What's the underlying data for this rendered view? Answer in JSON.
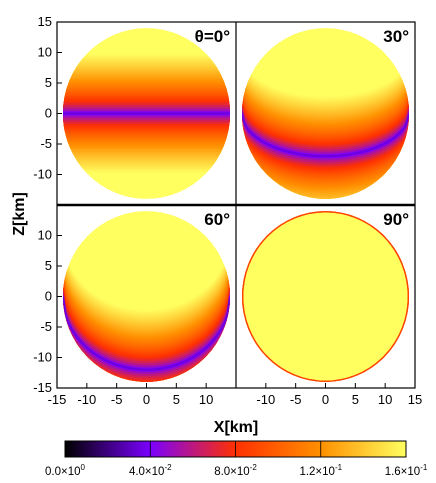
{
  "chart_data": {
    "type": "heatmap",
    "colormap": [
      "#000000",
      "#7a00ff",
      "#ff3000",
      "#ff9000",
      "#ffff60"
    ],
    "xlabel": "X[km]",
    "ylabel": "Z[km]",
    "xlim": [
      -15,
      15
    ],
    "ylim": [
      -15,
      15
    ],
    "grid": false,
    "x_ticks": {
      "left": [
        "-15",
        "-10",
        "-5",
        "0",
        "5",
        "10"
      ],
      "right": [
        "-10",
        "-5",
        "0",
        "5",
        "10",
        "15"
      ]
    },
    "y_ticks": {
      "top": [
        "15",
        "10",
        "5",
        "0",
        "-5",
        "-10"
      ],
      "bottom": [
        "10",
        "5",
        "0",
        "-5",
        "-10",
        "-15"
      ]
    },
    "panels": [
      {
        "label": "θ=0°",
        "angle_deg": 0,
        "band_center_z_km": 0,
        "position": "top-left"
      },
      {
        "label": "30°",
        "angle_deg": 30,
        "band_center_z_km": -7,
        "position": "top-right"
      },
      {
        "label": "60°",
        "angle_deg": 60,
        "band_center_z_km": -12,
        "position": "bottom-left"
      },
      {
        "label": "90°",
        "angle_deg": 90,
        "band_center_z_km": -14,
        "position": "bottom-right"
      }
    ],
    "colorbar": {
      "min": 0,
      "max": 0.16,
      "ticks": [
        0,
        0.04,
        0.08,
        0.12,
        0.16
      ],
      "tick_labels": [
        {
          "mantissa": "0.0×10",
          "exp": "0"
        },
        {
          "mantissa": "4.0×10",
          "exp": "-2"
        },
        {
          "mantissa": "8.0×10",
          "exp": "-2"
        },
        {
          "mantissa": "1.2×10",
          "exp": "-1"
        },
        {
          "mantissa": "1.6×10",
          "exp": "-1"
        }
      ]
    }
  }
}
